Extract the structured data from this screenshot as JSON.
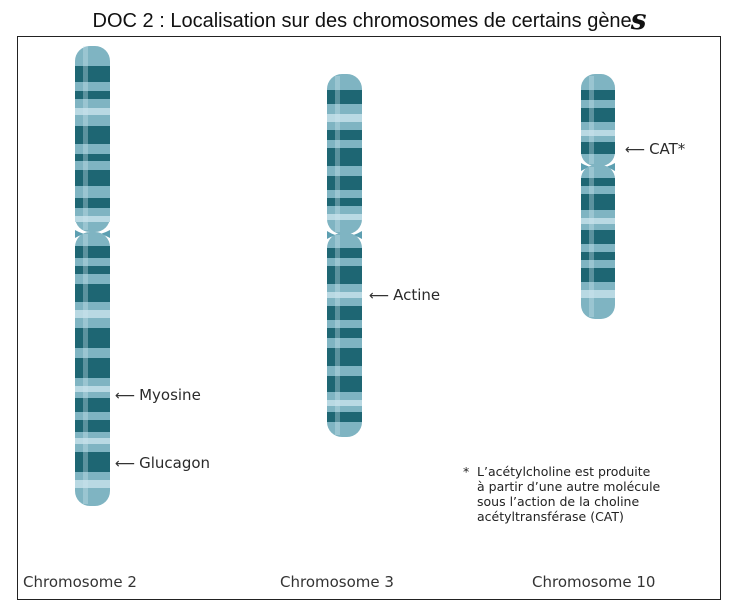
{
  "title": {
    "text": "DOC 2 : Localisation sur des chromosomes de certains gène",
    "final_mark": "s"
  },
  "colors": {
    "band_dark": "#1e6673",
    "band_light": "#7fb4c2",
    "band_pale": "#b9d9e3",
    "centromere": "#5d9fb1"
  },
  "chromosomes": [
    {
      "name": "Chromosome 2"
    },
    {
      "name": "Chromosome 3"
    },
    {
      "name": "Chromosome 10"
    }
  ],
  "gene_labels": {
    "myosine": "Myosine",
    "glucagon": "Glucagon",
    "actine": "Actine",
    "cat": "CAT*"
  },
  "arrow_glyph": "⟵",
  "footnote": {
    "marker": "*",
    "lines": [
      "L’acétylcholine est produite",
      "à partir d’une autre molécule",
      "sous l’action de la choline",
      "acétyltransférase (CAT)"
    ]
  }
}
